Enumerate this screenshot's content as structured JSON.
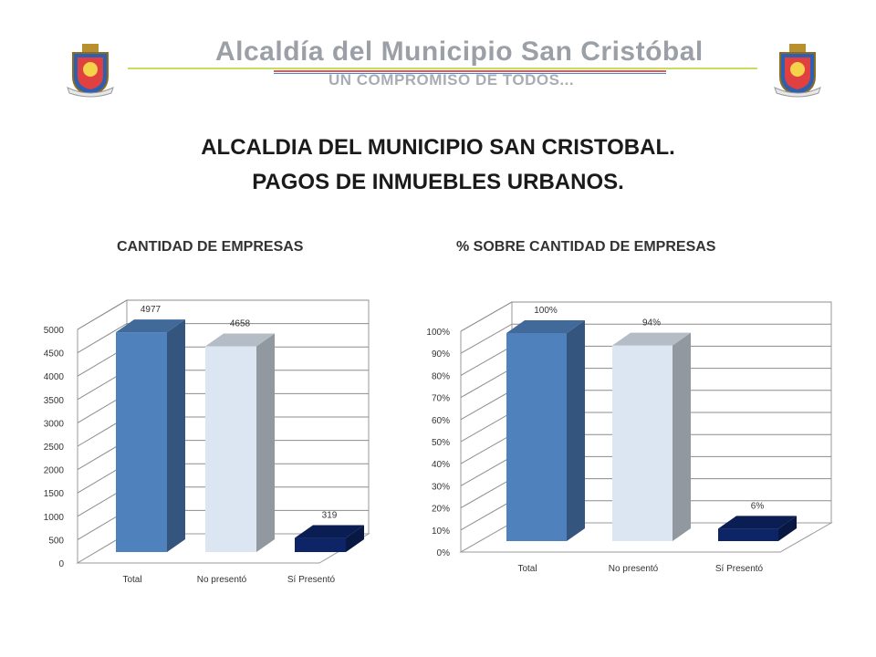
{
  "header": {
    "org_name": "Alcaldía del Municipio San Cristóbal",
    "slogan": "UN COMPROMISO DE TODOS...",
    "brand_colors": [
      "#c8dd60",
      "#e05a5a",
      "#4d86c8"
    ]
  },
  "slide": {
    "title_line1": "ALCALDIA DEL MUNICIPIO SAN CRISTOBAL.",
    "title_line2": "PAGOS DE INMUEBLES URBANOS."
  },
  "chart_data": [
    {
      "type": "bar",
      "title": "CANTIDAD DE EMPRESAS",
      "categories": [
        "Total",
        "No presentó",
        "Sí Presentó"
      ],
      "values": [
        4977,
        4658,
        319
      ],
      "data_labels": [
        "4977",
        "4658",
        "319"
      ],
      "ylim": [
        0,
        5000
      ],
      "yticks": [
        0,
        500,
        1000,
        1500,
        2000,
        2500,
        3000,
        3500,
        4000,
        4500,
        5000
      ],
      "ytick_labels": [
        "0",
        "500",
        "1000",
        "1500",
        "2000",
        "2500",
        "3000",
        "3500",
        "4000",
        "4500",
        "5000"
      ],
      "grid": true,
      "colors": [
        "#4f81bd",
        "#dce6f2",
        "#0d2466"
      ]
    },
    {
      "type": "bar",
      "title": "% SOBRE CANTIDAD DE EMPRESAS",
      "categories": [
        "Total",
        "No presentó",
        "Sí Presentó"
      ],
      "values": [
        100,
        94,
        6
      ],
      "data_labels": [
        "100%",
        "94%",
        "6%"
      ],
      "ylim": [
        0,
        100
      ],
      "yticks": [
        0,
        10,
        20,
        30,
        40,
        50,
        60,
        70,
        80,
        90,
        100
      ],
      "ytick_labels": [
        "0%",
        "10%",
        "20%",
        "30%",
        "40%",
        "50%",
        "60%",
        "70%",
        "80%",
        "90%",
        "100%"
      ],
      "grid": true,
      "colors": [
        "#4f81bd",
        "#dce6f2",
        "#0d2466"
      ]
    }
  ]
}
